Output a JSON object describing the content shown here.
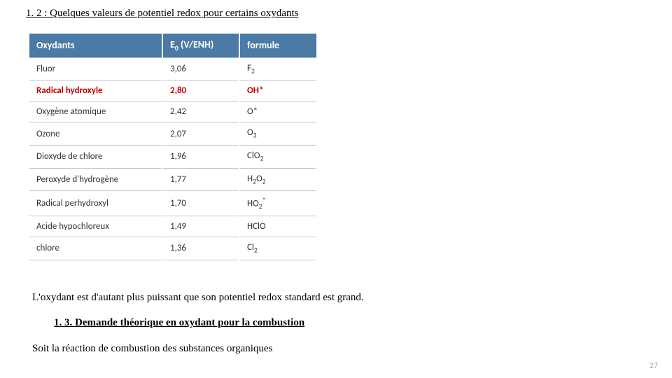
{
  "title": "1. 2 : Quelques valeurs de potentiel redox pour certains oxydants",
  "table": {
    "headers": {
      "col1": "Oxydants",
      "col2_prefix": "E",
      "col2_sub": "0",
      "col2_suffix": " (V/ENH)",
      "col3": "formule"
    },
    "rows": [
      {
        "name": "Fluor",
        "e0": "3,06",
        "formula_base": "F",
        "formula_sub": "2",
        "highlight": false
      },
      {
        "name": "Radical hydroxyle",
        "e0": "2,80",
        "formula_base": "OH*",
        "formula_sub": "",
        "highlight": true
      },
      {
        "name": "Oxygène atomique",
        "e0": "2,42",
        "formula_base": "O*",
        "formula_sub": "",
        "highlight": false
      },
      {
        "name": "Ozone",
        "e0": "2,07",
        "formula_base": "O",
        "formula_sub": "3",
        "highlight": false
      },
      {
        "name": "Dioxyde de chlore",
        "e0": "1,96",
        "formula_base": "ClO",
        "formula_sub": "2",
        "highlight": false
      },
      {
        "name": "Peroxyde d'hydrogène",
        "e0": "1,77",
        "formula_base": "H",
        "formula_sub": "2",
        "formula_base2": "O",
        "formula_sub2": "2",
        "highlight": false
      },
      {
        "name": "Radical perhydroxyl",
        "e0": "1,70",
        "formula_base": "HO",
        "formula_sub": "2",
        "formula_sup": "*",
        "highlight": false
      },
      {
        "name": "Acide hypochloreux",
        "e0": "1,49",
        "formula_base": "HClO",
        "formula_sub": "",
        "highlight": false
      },
      {
        "name": "chlore",
        "e0": "1,36",
        "formula_base": "Cl",
        "formula_sub": "2",
        "highlight": false
      }
    ]
  },
  "caption": "L'oxydant est d'autant plus puissant que son potentiel redox standard est grand.",
  "section_heading": "1. 3. Demande théorique en oxydant pour la combustion",
  "body_text": "Soit la réaction de combustion des substances organiques",
  "page_number": "27",
  "colors": {
    "header_bg": "#4a7aa5",
    "header_fg": "#ffffff",
    "row_border": "#b7c8d6",
    "highlight_fg": "#c00000",
    "page_num_fg": "#a6a6a6"
  }
}
